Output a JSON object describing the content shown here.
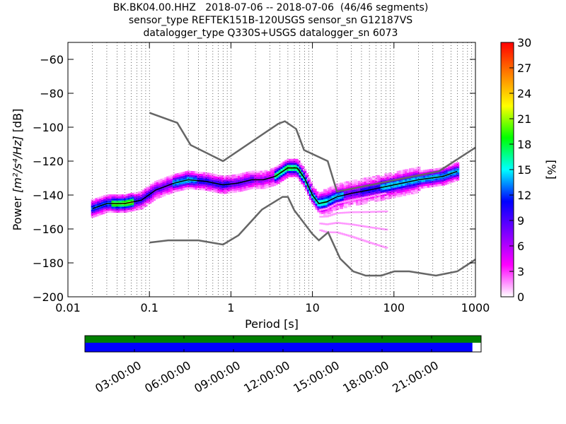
{
  "header": {
    "line1": "BK.BK04.00.HHZ   2018-07-06 -- 2018-07-06  (46/46 segments)",
    "line2": "sensor_type REFTEK151B-120USGS sensor_sn G12187VS",
    "line3": "datalogger_type Q330S+USGS datalogger_sn 6073"
  },
  "chart_data": [
    {
      "type": "heatmap",
      "xlabel": "Period [s]",
      "ylabel_prefix": "Power ",
      "ylabel_units": "[m²/s⁴/Hz]",
      "ylabel_suffix": " [dB]",
      "xscale": "log",
      "xlim": [
        0.01,
        1000
      ],
      "ylim": [
        -200,
        -50
      ],
      "x_ticks": [
        {
          "value": 0.01,
          "label": "0.01"
        },
        {
          "value": 0.1,
          "label": "0.1"
        },
        {
          "value": 1,
          "label": "1"
        },
        {
          "value": 10,
          "label": "10"
        },
        {
          "value": 100,
          "label": "100"
        },
        {
          "value": 1000,
          "label": "1000"
        }
      ],
      "y_ticks": [
        {
          "value": -60,
          "label": "−60"
        },
        {
          "value": -80,
          "label": "−80"
        },
        {
          "value": -100,
          "label": "−100"
        },
        {
          "value": -120,
          "label": "−120"
        },
        {
          "value": -140,
          "label": "−140"
        },
        {
          "value": -160,
          "label": "−160"
        },
        {
          "value": -180,
          "label": "−180"
        },
        {
          "value": -200,
          "label": "−200"
        }
      ],
      "grid": "dotted vertical at log minor ticks",
      "mean_curve": {
        "x": [
          0.02,
          0.03,
          0.05,
          0.08,
          0.12,
          0.2,
          0.3,
          0.5,
          0.8,
          1.2,
          1.8,
          2.5,
          3.5,
          5,
          6.5,
          8,
          10,
          12,
          15,
          20,
          30,
          50,
          100,
          200,
          400,
          600
        ],
        "y": [
          -148,
          -145,
          -145,
          -143,
          -137,
          -133,
          -131,
          -132,
          -134,
          -133,
          -131,
          -131,
          -129,
          -124,
          -124,
          -130,
          -140,
          -145,
          -144,
          -141,
          -139,
          -137,
          -134,
          -131,
          -129,
          -126
        ]
      },
      "high_noise_model": {
        "x": [
          0.1,
          0.22,
          0.32,
          0.8,
          3.8,
          4.6,
          6.3,
          7.9,
          15.4,
          20,
          354.8,
          1000
        ],
        "y": [
          -91.5,
          -97.4,
          -110.5,
          -120,
          -98,
          -96.5,
          -101,
          -113.5,
          -120,
          -138,
          -126,
          -112
        ]
      },
      "low_noise_model": {
        "x": [
          0.1,
          0.17,
          0.4,
          0.8,
          1.24,
          2.4,
          4.3,
          5,
          6,
          10,
          12,
          15.6,
          21.9,
          31.6,
          45,
          70,
          101,
          154,
          328,
          600,
          1000
        ],
        "y": [
          -168,
          -166.7,
          -166.7,
          -169.2,
          -163.7,
          -148.6,
          -141.1,
          -141.1,
          -149,
          -163,
          -166.7,
          -162,
          -177.5,
          -185,
          -187.5,
          -187.5,
          -185,
          -185,
          -187.5,
          -185,
          -178
        ]
      },
      "density_samples": [
        {
          "x": 0.025,
          "y": -146,
          "pct": 12
        },
        {
          "x": 0.05,
          "y": -145,
          "pct": 20
        },
        {
          "x": 0.08,
          "y": -143,
          "pct": 10
        },
        {
          "x": 0.15,
          "y": -134,
          "pct": 8
        },
        {
          "x": 0.25,
          "y": -131,
          "pct": 14
        },
        {
          "x": 0.6,
          "y": -132,
          "pct": 10
        },
        {
          "x": 1.5,
          "y": -132,
          "pct": 8
        },
        {
          "x": 2.5,
          "y": -126,
          "pct": 6
        },
        {
          "x": 5,
          "y": -124,
          "pct": 18
        },
        {
          "x": 12,
          "y": -145,
          "pct": 16
        },
        {
          "x": 20,
          "y": -141,
          "pct": 14
        },
        {
          "x": 30,
          "y": -140,
          "pct": 8
        },
        {
          "x": 50,
          "y": -138,
          "pct": 10
        },
        {
          "x": 100,
          "y": -134,
          "pct": 14
        },
        {
          "x": 200,
          "y": -131,
          "pct": 14
        },
        {
          "x": 500,
          "y": -126,
          "pct": 14
        }
      ],
      "colorbar": {
        "label": "[%]",
        "min": 0,
        "max": 30,
        "ticks": [
          "0",
          "3",
          "6",
          "9",
          "12",
          "15",
          "18",
          "21",
          "24",
          "27",
          "30"
        ],
        "colors": [
          "#ffffff",
          "#ff00ff",
          "#8000ff",
          "#0000ff",
          "#00ffff",
          "#00ff00",
          "#ffff00",
          "#ff8000",
          "#ff0000"
        ]
      }
    },
    {
      "type": "timeline",
      "time_labels": [
        "03:00:00",
        "06:00:00",
        "09:00:00",
        "12:00:00",
        "15:00:00",
        "18:00:00",
        "21:00:00"
      ],
      "coverage_color": "#008000",
      "data_color": "#0000ff",
      "data_fraction": 0.978
    }
  ]
}
